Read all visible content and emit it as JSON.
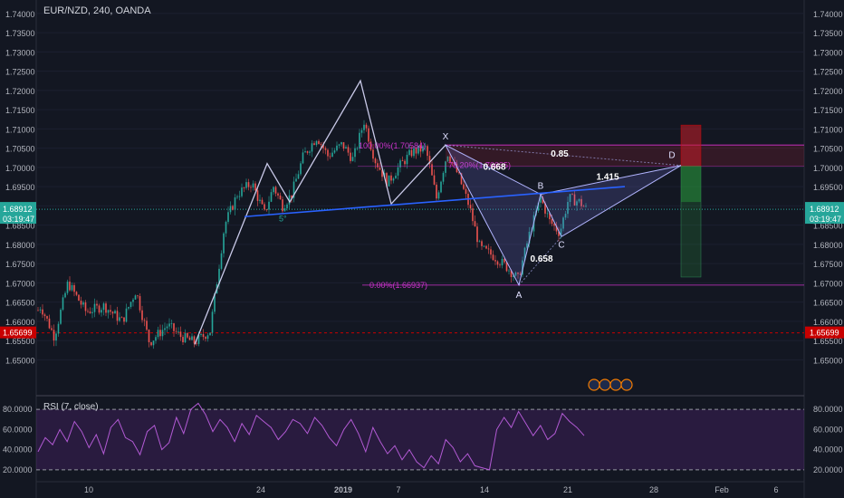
{
  "header": {
    "title": "EUR/NZD, 240, OANDA"
  },
  "rsi": {
    "title": "RSI (7, close)",
    "ticks": [
      "80.0000",
      "60.0000",
      "40.0000",
      "20.0000"
    ],
    "upper": 80,
    "lower": 20,
    "range": [
      10,
      90
    ]
  },
  "chart_data": [
    {
      "type": "candlestick",
      "title": "EUR/NZD, 240, OANDA",
      "ylim": [
        1.6409,
        1.7435
      ],
      "y_ticks": [
        "1.74000",
        "1.73500",
        "1.73000",
        "1.72500",
        "1.72000",
        "1.71500",
        "1.71000",
        "1.70500",
        "1.70000",
        "1.69500",
        "1.69000",
        "1.68500",
        "1.68000",
        "1.67500",
        "1.67000",
        "1.66500",
        "1.66000",
        "1.65500",
        "1.65000"
      ],
      "x_ticks": [
        "10",
        "24",
        "2019",
        "7",
        "14",
        "21",
        "28",
        "Feb",
        "6"
      ],
      "price_label": {
        "value": "1.68912",
        "countdown": "03:19:47",
        "color": "#26a69a"
      },
      "level_label": {
        "value": "1.65699",
        "color": "#c80000"
      },
      "price_path": [
        [
          0,
          1.6525
        ],
        [
          25,
          1.6565
        ],
        [
          45,
          1.664
        ],
        [
          60,
          1.656
        ],
        [
          75,
          1.67
        ],
        [
          95,
          1.6625
        ],
        [
          115,
          1.664
        ],
        [
          135,
          1.66
        ],
        [
          150,
          1.668
        ],
        [
          165,
          1.6545
        ],
        [
          185,
          1.659
        ],
        [
          200,
          1.656
        ],
        [
          215,
          1.6545
        ],
        [
          232,
          1.6575
        ],
        [
          248,
          1.685
        ],
        [
          262,
          1.693
        ],
        [
          278,
          1.696
        ],
        [
          292,
          1.688
        ],
        [
          302,
          1.695
        ],
        [
          312,
          1.69
        ],
        [
          322,
          1.693
        ],
        [
          335,
          1.703
        ],
        [
          350,
          1.708
        ],
        [
          362,
          1.703
        ],
        [
          378,
          1.706
        ],
        [
          390,
          1.702
        ],
        [
          402,
          1.712
        ],
        [
          414,
          1.702
        ],
        [
          428,
          1.696
        ],
        [
          440,
          1.7
        ],
        [
          455,
          1.704
        ],
        [
          470,
          1.705
        ],
        [
          482,
          1.692
        ],
        [
          494,
          1.704
        ],
        [
          506,
          1.698
        ],
        [
          518,
          1.69
        ],
        [
          530,
          1.679
        ],
        [
          545,
          1.677
        ],
        [
          560,
          1.674
        ],
        [
          572,
          1.671
        ],
        [
          585,
          1.683
        ],
        [
          597,
          1.692
        ],
        [
          607,
          1.686
        ],
        [
          618,
          1.683
        ],
        [
          628,
          1.692
        ],
        [
          640,
          1.691
        ],
        [
          648,
          1.689
        ]
      ],
      "pattern": {
        "labels": [
          "X",
          "A",
          "B",
          "C",
          "D"
        ],
        "ratios": [
          "0.668",
          "0.658",
          "1.415",
          "0.85"
        ],
        "fib_top": "100.00%(1.70584)",
        "fib_mid": "78.20%(1.70035)",
        "fib_bottom": "0.00%(1.66937)",
        "points": {
          "X": 1.7058,
          "A": 1.6694,
          "B": 1.693,
          "C": 1.682,
          "D": 1.7005
        }
      },
      "zigzag": [
        [
          215,
          1.654
        ],
        [
          295,
          1.701
        ],
        [
          320,
          1.691
        ],
        [
          398,
          1.7225
        ],
        [
          432,
          1.6905
        ],
        [
          492,
          1.7058
        ]
      ],
      "trend_line": {
        "from": [
          270,
          1.6872
        ],
        "to": [
          690,
          1.695
        ]
      },
      "trend_label": "5°",
      "position_box": {
        "entry": 1.7003,
        "stop": 1.711,
        "target": 1.6715
      },
      "colors": {
        "up": "#26a69a",
        "down": "#ef5350",
        "pattern": "#b2b5ff",
        "fib": "#cc33cc",
        "trend": "#2962ff",
        "rsi": "#9c27b0"
      }
    },
    {
      "type": "line",
      "title": "RSI (7, close)",
      "ylim": [
        10,
        90
      ],
      "values": [
        38,
        52,
        45,
        60,
        48,
        68,
        58,
        42,
        55,
        36,
        62,
        70,
        52,
        48,
        35,
        58,
        64,
        40,
        47,
        72,
        56,
        80,
        86,
        75,
        58,
        70,
        62,
        48,
        66,
        55,
        74,
        68,
        62,
        50,
        58,
        70,
        66,
        56,
        72,
        64,
        52,
        44,
        60,
        70,
        56,
        38,
        62,
        48,
        36,
        44,
        30,
        40,
        28,
        22,
        34,
        26,
        50,
        42,
        28,
        36,
        24,
        22,
        20,
        60,
        72,
        62,
        78,
        66,
        54,
        64,
        50,
        56,
        76,
        68,
        62,
        54
      ],
      "colors": {
        "line": "#b25ad4",
        "band": "#5b2a86"
      }
    }
  ]
}
